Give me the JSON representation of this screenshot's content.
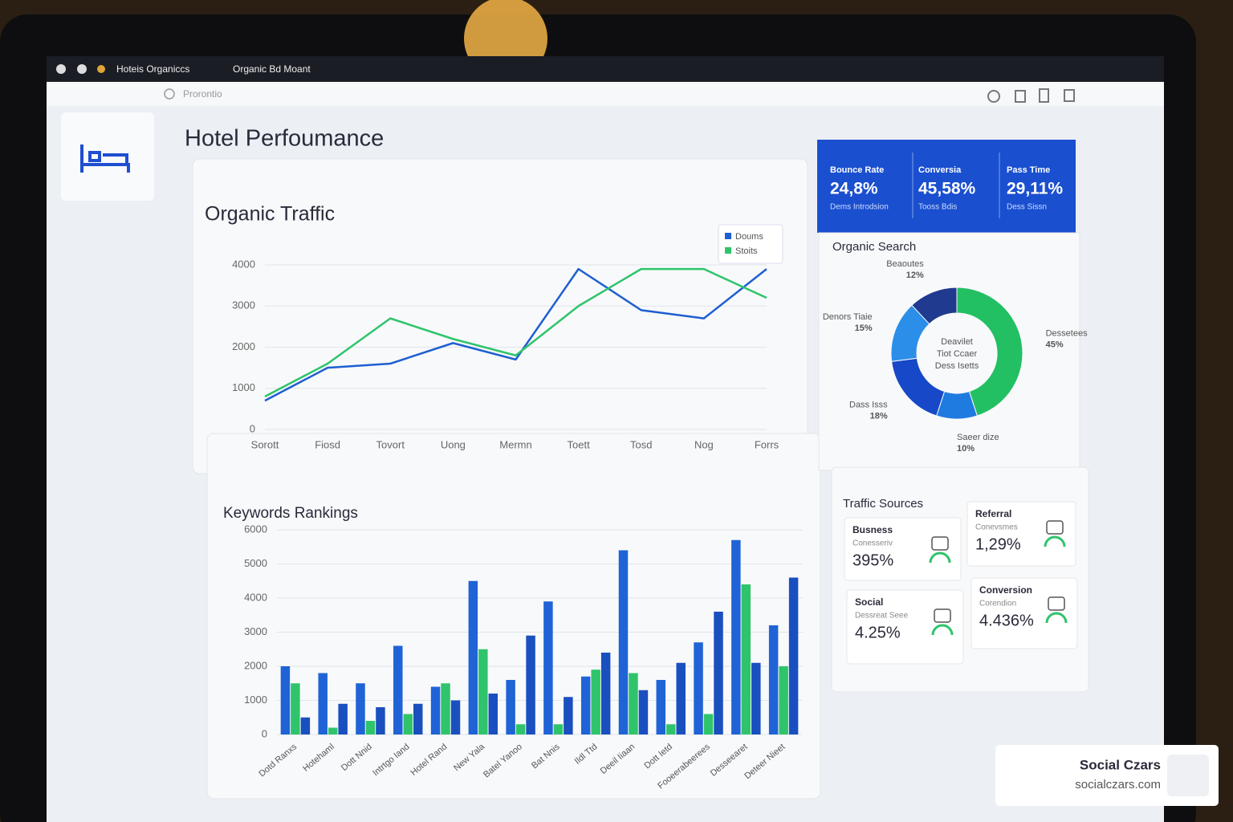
{
  "browser": {
    "tab_title": "Hoteis Organiccs",
    "tab_menu": "Organic Bd Moant",
    "search_placeholder": "Prorontio"
  },
  "header": {
    "title": "Hotel Perfoumance"
  },
  "kpis": [
    {
      "label": "Bounce Rate",
      "value": "24,8%",
      "sub": "Dems Introdsion"
    },
    {
      "label": "Conversia",
      "value": "45,58%",
      "sub": "Tooss Bdis"
    },
    {
      "label": "Pass Time",
      "value": "29,11%",
      "sub": "Dess Sissn"
    }
  ],
  "traffic_sources": {
    "title": "Traffic Sources",
    "cards": [
      {
        "label": "Busness",
        "value": "395%",
        "sub": "Conesseriv"
      },
      {
        "label": "Referral",
        "value": "1,29%",
        "sub": "Conevsmes"
      },
      {
        "label": "Social",
        "value": "4.25%",
        "sub": "Dessreat Seee"
      },
      {
        "label": "Conversion",
        "value": "4.436%",
        "sub": "Corendion"
      }
    ]
  },
  "watermark": {
    "name": "Social Czars",
    "url": "socialczars.com"
  },
  "chart_data": [
    {
      "type": "line",
      "title": "Organic Traffic",
      "categories": [
        "Sorott",
        "Fiosd",
        "Tovort",
        "Uong",
        "Mermn",
        "Toett",
        "Tosd",
        "Nog",
        "Forrs"
      ],
      "series": [
        {
          "name": "Doums",
          "color": "#1f5fd1",
          "values": [
            700,
            1500,
            1600,
            2100,
            1700,
            3900,
            2900,
            2700,
            3900
          ]
        },
        {
          "name": "Stoits",
          "color": "#2fc46b",
          "values": [
            800,
            1600,
            2700,
            2200,
            1800,
            3000,
            3900,
            3900,
            3200
          ]
        }
      ],
      "ylim": [
        0,
        4000
      ],
      "yticks": [
        0,
        1000,
        2000,
        3000,
        4000
      ],
      "grid": true,
      "legend": "top-right"
    },
    {
      "type": "donut",
      "title": "Organic Search",
      "center_text": [
        "Deavilet",
        "Tiot Ccaer",
        "Dess Isetts"
      ],
      "categories": [
        "Dessetees",
        "Saeer dize",
        "Dass Isss",
        "Denors Tiaie",
        "Beaoutes"
      ],
      "values": [
        45,
        10,
        18,
        15,
        12
      ],
      "value_labels": [
        "45%",
        "10%",
        "18%",
        "15%",
        "12%"
      ],
      "colors": [
        "#22c063",
        "#1f7be0",
        "#1648c8",
        "#2b8ee8",
        "#203a8f"
      ]
    },
    {
      "type": "grouped-bar",
      "title": "Keywords Rankings",
      "categories": [
        "Dotd Ranxs",
        "Hotehaml",
        "Dott Nnid",
        "Intrtgo Iand",
        "Hotel Rand",
        "New Yala",
        "Batel Yanoo",
        "Bat Nnis",
        "Ildl Ttd",
        "Deeil Iiaan",
        "Dott Ietd",
        "Fooeerabeerees",
        "Desseearet",
        "Deteer Nieet"
      ],
      "series": [
        {
          "color": "#1f63d6",
          "values": [
            2000,
            1800,
            1500,
            2600,
            1400,
            4500,
            1600,
            3900,
            1700,
            5400,
            1600,
            2700,
            5700,
            3200
          ]
        },
        {
          "color": "#2fc46b",
          "values": [
            1500,
            200,
            400,
            600,
            1500,
            2500,
            300,
            300,
            1900,
            1800,
            300,
            600,
            4400,
            2000
          ]
        },
        {
          "color": "#1a4fbf",
          "values": [
            500,
            900,
            800,
            900,
            1000,
            1200,
            2900,
            1100,
            2400,
            1300,
            2100,
            3600,
            2100,
            4600
          ]
        }
      ],
      "ylim": [
        0,
        6000
      ],
      "yticks": [
        0,
        1000,
        2000,
        3000,
        4000,
        5000,
        6000
      ],
      "grid": true
    }
  ]
}
